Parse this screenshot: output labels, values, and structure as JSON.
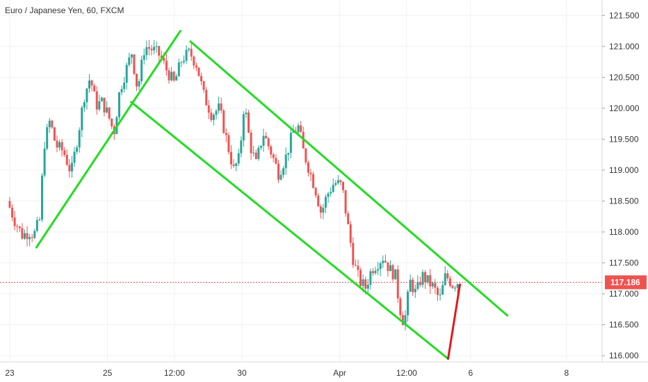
{
  "chart_data": {
    "type": "candlestick",
    "title": "Euro / Japanese Yen, 60, FXCM",
    "ylim": [
      115.9,
      121.75
    ],
    "y_ticks": [
      121.5,
      121.0,
      120.5,
      120.0,
      119.5,
      119.0,
      118.5,
      118.0,
      117.5,
      117.0,
      116.5,
      116.0
    ],
    "y_tick_labels": [
      "121.500",
      "121.000",
      "120.500",
      "120.000",
      "119.500",
      "119.000",
      "118.500",
      "118.000",
      "117.500",
      "117.000",
      "116.500",
      "116.000"
    ],
    "x_ticks": [
      {
        "label": "23",
        "pos": 0.0
      },
      {
        "label": "25",
        "pos": 0.165
      },
      {
        "label": "12:00",
        "pos": 0.278
      },
      {
        "label": "30",
        "pos": 0.392
      },
      {
        "label": "Apr",
        "pos": 0.557
      },
      {
        "label": "12:00",
        "pos": 0.67
      },
      {
        "label": "6",
        "pos": 0.778
      },
      {
        "label": "8",
        "pos": 0.94
      }
    ],
    "current_price": 117.186,
    "current_price_label": "117.186",
    "colors": {
      "up": "#26a69a",
      "down": "#ef5350",
      "trendline": "#22dd22",
      "forecast": "#e3181d",
      "price_line": "#ef5350"
    },
    "ohlc_path": [
      [
        0.0,
        118.5
      ],
      [
        0.012,
        118.2
      ],
      [
        0.025,
        117.95
      ],
      [
        0.038,
        118.0
      ],
      [
        0.045,
        117.95
      ],
      [
        0.055,
        118.2
      ],
      [
        0.062,
        119.4
      ],
      [
        0.072,
        119.8
      ],
      [
        0.082,
        119.4
      ],
      [
        0.095,
        119.3
      ],
      [
        0.108,
        118.95
      ],
      [
        0.12,
        119.6
      ],
      [
        0.13,
        120.2
      ],
      [
        0.14,
        120.5
      ],
      [
        0.15,
        120.05
      ],
      [
        0.16,
        120.1
      ],
      [
        0.17,
        119.9
      ],
      [
        0.18,
        119.6
      ],
      [
        0.19,
        120.3
      ],
      [
        0.2,
        120.6
      ],
      [
        0.21,
        120.9
      ],
      [
        0.22,
        120.3
      ],
      [
        0.232,
        121.0
      ],
      [
        0.245,
        120.95
      ],
      [
        0.258,
        120.85
      ],
      [
        0.27,
        120.6
      ],
      [
        0.282,
        120.4
      ],
      [
        0.295,
        120.8
      ],
      [
        0.308,
        120.9
      ],
      [
        0.32,
        120.7
      ],
      [
        0.332,
        120.2
      ],
      [
        0.345,
        119.9
      ],
      [
        0.358,
        120.0
      ],
      [
        0.37,
        119.5
      ],
      [
        0.382,
        119.0
      ],
      [
        0.392,
        119.2
      ],
      [
        0.4,
        120.1
      ],
      [
        0.41,
        119.4
      ],
      [
        0.42,
        119.1
      ],
      [
        0.432,
        119.6
      ],
      [
        0.445,
        119.3
      ],
      [
        0.458,
        118.95
      ],
      [
        0.47,
        119.2
      ],
      [
        0.482,
        119.6
      ],
      [
        0.492,
        119.7
      ],
      [
        0.5,
        119.3
      ],
      [
        0.51,
        119.0
      ],
      [
        0.52,
        118.7
      ],
      [
        0.53,
        118.3
      ],
      [
        0.54,
        118.6
      ],
      [
        0.552,
        118.8
      ],
      [
        0.565,
        118.75
      ],
      [
        0.575,
        118.1
      ],
      [
        0.585,
        117.5
      ],
      [
        0.595,
        117.2
      ],
      [
        0.605,
        117.1
      ],
      [
        0.615,
        117.4
      ],
      [
        0.625,
        117.5
      ],
      [
        0.635,
        117.6
      ],
      [
        0.645,
        117.4
      ],
      [
        0.655,
        117.3
      ],
      [
        0.662,
        116.8
      ],
      [
        0.67,
        116.5
      ],
      [
        0.68,
        117.2
      ],
      [
        0.69,
        117.0
      ],
      [
        0.7,
        117.3
      ],
      [
        0.71,
        117.2
      ],
      [
        0.72,
        117.1
      ],
      [
        0.73,
        116.9
      ],
      [
        0.74,
        117.3
      ],
      [
        0.752,
        117.15
      ],
      [
        0.762,
        117.2
      ]
    ],
    "annotations": [
      {
        "type": "trendline",
        "color": "#22dd22",
        "points": [
          [
            0.045,
            117.75
          ],
          [
            0.288,
            121.25
          ]
        ]
      },
      {
        "type": "trendline",
        "color": "#22dd22",
        "points": [
          [
            0.205,
            120.1
          ],
          [
            0.74,
            115.95
          ]
        ]
      },
      {
        "type": "trendline",
        "color": "#22dd22",
        "points": [
          [
            0.305,
            121.08
          ],
          [
            0.84,
            116.65
          ]
        ]
      },
      {
        "type": "forecast",
        "color": "#e3181d",
        "points": [
          [
            0.74,
            115.95
          ],
          [
            0.76,
            117.15
          ]
        ]
      }
    ]
  }
}
